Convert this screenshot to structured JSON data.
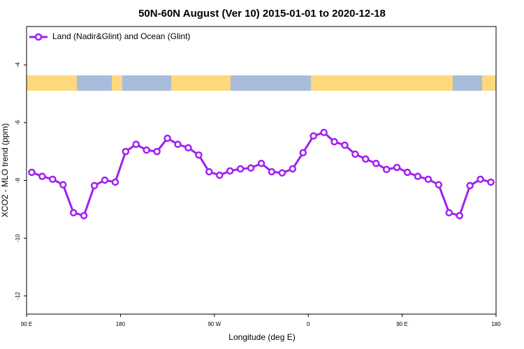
{
  "chart_data": {
    "type": "line",
    "title": "50N-60N August (Ver 10)   2015-01-01 to 2020-12-18",
    "x_label": "Longitude (deg E)",
    "y_label": "XCO2 - MLO trend (ppm)",
    "x": [
      95,
      105,
      115,
      125,
      135,
      145,
      155,
      165,
      175,
      185,
      195,
      205,
      215,
      225,
      235,
      245,
      255,
      265,
      275,
      285,
      295,
      305,
      315,
      325,
      335,
      345,
      355,
      365,
      375,
      385,
      395,
      405,
      415,
      425,
      435,
      445,
      455,
      465,
      475,
      485,
      495,
      505,
      515,
      525,
      535
    ],
    "series": [
      {
        "name": "Land (Nadir&Glint) and Ocean (Glint)",
        "color": "#a020f0",
        "values": [
          -7.72,
          -7.86,
          -7.96,
          -8.15,
          -9.12,
          -9.22,
          -8.18,
          -7.99,
          -8.06,
          -7.0,
          -6.75,
          -6.95,
          -7.0,
          -6.54,
          -6.75,
          -6.87,
          -7.12,
          -7.7,
          -7.82,
          -7.67,
          -7.6,
          -7.57,
          -7.41,
          -7.7,
          -7.74,
          -7.6,
          -7.04,
          -6.46,
          -6.34,
          -6.66,
          -6.78,
          -7.09,
          -7.26,
          -7.41,
          -7.62,
          -7.55,
          -7.72,
          -7.86,
          -7.96,
          -8.15,
          -9.12,
          -9.22,
          -8.18,
          -7.96,
          -8.06
        ]
      }
    ],
    "xlim": [
      90,
      540
    ],
    "xticks": [
      {
        "value": 90,
        "label": "90 E"
      },
      {
        "value": 180,
        "label": "180"
      },
      {
        "value": 270,
        "label": "90 W"
      },
      {
        "value": 360,
        "label": "0"
      },
      {
        "value": 450,
        "label": "90 E"
      },
      {
        "value": 540,
        "label": "180"
      }
    ],
    "ylim": [
      -12.63,
      -2.67
    ],
    "yticks": [
      -4,
      -6,
      -8,
      -10,
      -12
    ],
    "legend": "top-left"
  }
}
